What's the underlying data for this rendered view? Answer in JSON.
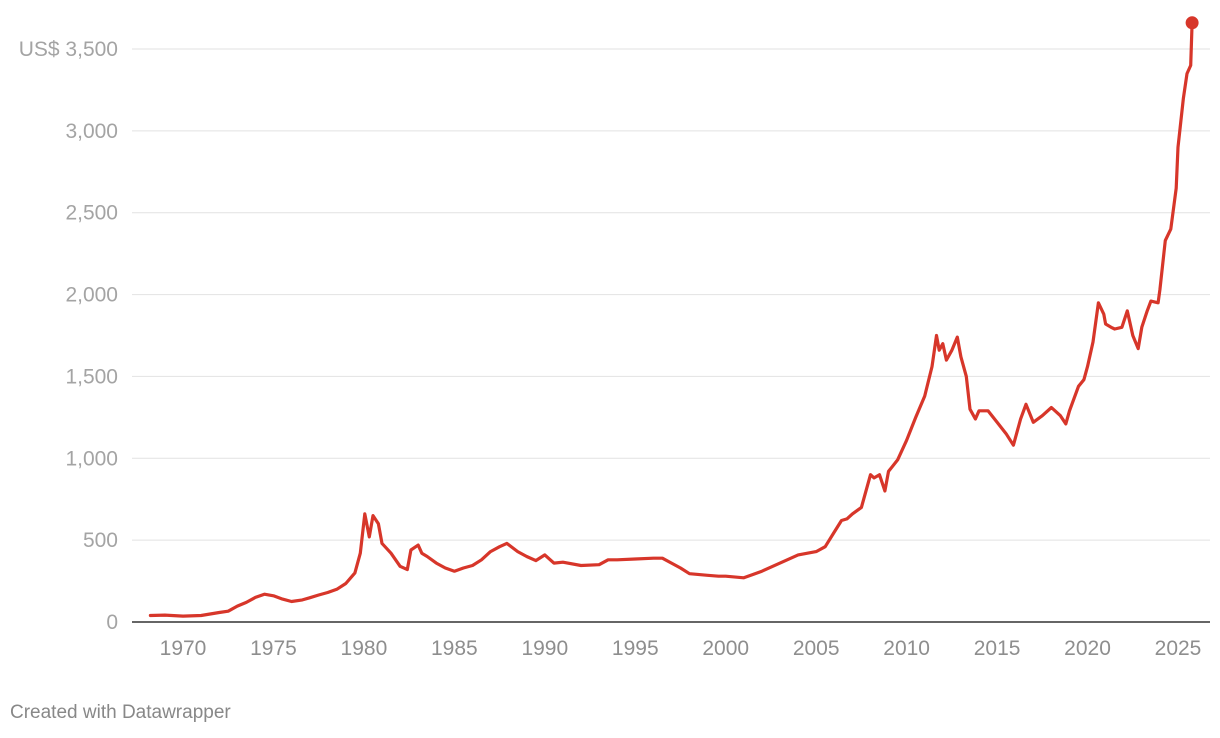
{
  "chart_data": {
    "type": "line",
    "title": "",
    "xlabel": "",
    "ylabel": "",
    "y_unit_prefix": "US$",
    "ylim": [
      0,
      3600
    ],
    "xlim": [
      1966,
      2027
    ],
    "yticks": [
      0,
      500,
      1000,
      1500,
      2000,
      2500,
      3000,
      3500
    ],
    "ytick_labels": [
      "0",
      "500",
      "1,000",
      "1,500",
      "2,000",
      "2,500",
      "3,000",
      "US$ 3,500"
    ],
    "xticks": [
      1970,
      1975,
      1980,
      1985,
      1990,
      1995,
      2000,
      2005,
      2010,
      2015,
      2020,
      2025
    ],
    "xtick_labels": [
      "1970",
      "1975",
      "1980",
      "1985",
      "1990",
      "1995",
      "2000",
      "2005",
      "2010",
      "2015",
      "2020",
      "2025"
    ],
    "grid": true,
    "line_color": "#d7362a",
    "series": [
      {
        "end_marker": true,
        "x": [
          1968.2,
          1969.0,
          1970.0,
          1971.0,
          1972.0,
          1972.5,
          1973.0,
          1973.5,
          1974.0,
          1974.5,
          1975.0,
          1975.5,
          1976.0,
          1976.6,
          1977.0,
          1977.5,
          1978.0,
          1978.5,
          1979.0,
          1979.5,
          1979.8,
          1980.05,
          1980.3,
          1980.5,
          1980.8,
          1981.0,
          1981.5,
          1982.0,
          1982.4,
          1982.6,
          1983.0,
          1983.2,
          1983.5,
          1984.0,
          1984.5,
          1985.0,
          1985.5,
          1986.0,
          1986.5,
          1987.0,
          1987.5,
          1987.9,
          1988.5,
          1989.0,
          1989.5,
          1990.0,
          1990.5,
          1991.0,
          1992.0,
          1993.0,
          1993.5,
          1994.0,
          1995.0,
          1996.0,
          1996.5,
          1997.0,
          1997.5,
          1998.0,
          1999.0,
          1999.6,
          2000.0,
          2001.0,
          2001.5,
          2002.0,
          2003.0,
          2004.0,
          2005.0,
          2005.5,
          2006.0,
          2006.4,
          2006.7,
          2007.0,
          2007.5,
          2008.0,
          2008.2,
          2008.5,
          2008.8,
          2009.0,
          2009.5,
          2010.0,
          2010.5,
          2011.0,
          2011.4,
          2011.65,
          2011.8,
          2012.0,
          2012.2,
          2012.5,
          2012.8,
          2013.0,
          2013.3,
          2013.5,
          2013.8,
          2014.0,
          2014.5,
          2015.0,
          2015.5,
          2015.9,
          2016.3,
          2016.6,
          2017.0,
          2017.5,
          2018.0,
          2018.5,
          2018.8,
          2019.0,
          2019.5,
          2019.8,
          2020.0,
          2020.3,
          2020.6,
          2020.9,
          2021.0,
          2021.3,
          2021.5,
          2021.9,
          2022.2,
          2022.5,
          2022.8,
          2023.0,
          2023.3,
          2023.5,
          2023.9,
          2024.0,
          2024.3,
          2024.6,
          2024.9,
          2025.0,
          2025.3,
          2025.5,
          2025.7,
          2025.78
        ],
        "y": [
          40,
          42,
          36,
          40,
          58,
          66,
          97,
          120,
          150,
          170,
          160,
          140,
          125,
          135,
          148,
          165,
          180,
          200,
          235,
          300,
          420,
          660,
          520,
          650,
          600,
          480,
          420,
          340,
          320,
          440,
          470,
          420,
          400,
          360,
          330,
          310,
          330,
          345,
          380,
          430,
          460,
          480,
          430,
          400,
          375,
          410,
          360,
          365,
          345,
          350,
          380,
          380,
          385,
          390,
          390,
          360,
          330,
          295,
          285,
          280,
          280,
          270,
          290,
          310,
          360,
          410,
          430,
          460,
          550,
          620,
          630,
          660,
          700,
          900,
          880,
          900,
          800,
          920,
          990,
          1110,
          1250,
          1380,
          1560,
          1750,
          1660,
          1700,
          1600,
          1660,
          1740,
          1620,
          1500,
          1300,
          1240,
          1290,
          1290,
          1220,
          1150,
          1080,
          1240,
          1330,
          1220,
          1260,
          1310,
          1260,
          1210,
          1290,
          1440,
          1480,
          1560,
          1710,
          1950,
          1880,
          1820,
          1800,
          1790,
          1800,
          1900,
          1750,
          1670,
          1800,
          1900,
          1960,
          1950,
          2030,
          2330,
          2400,
          2650,
          2900,
          3200,
          3350,
          3400,
          3660
        ]
      }
    ]
  },
  "footer": {
    "credit": "Created with Datawrapper"
  }
}
